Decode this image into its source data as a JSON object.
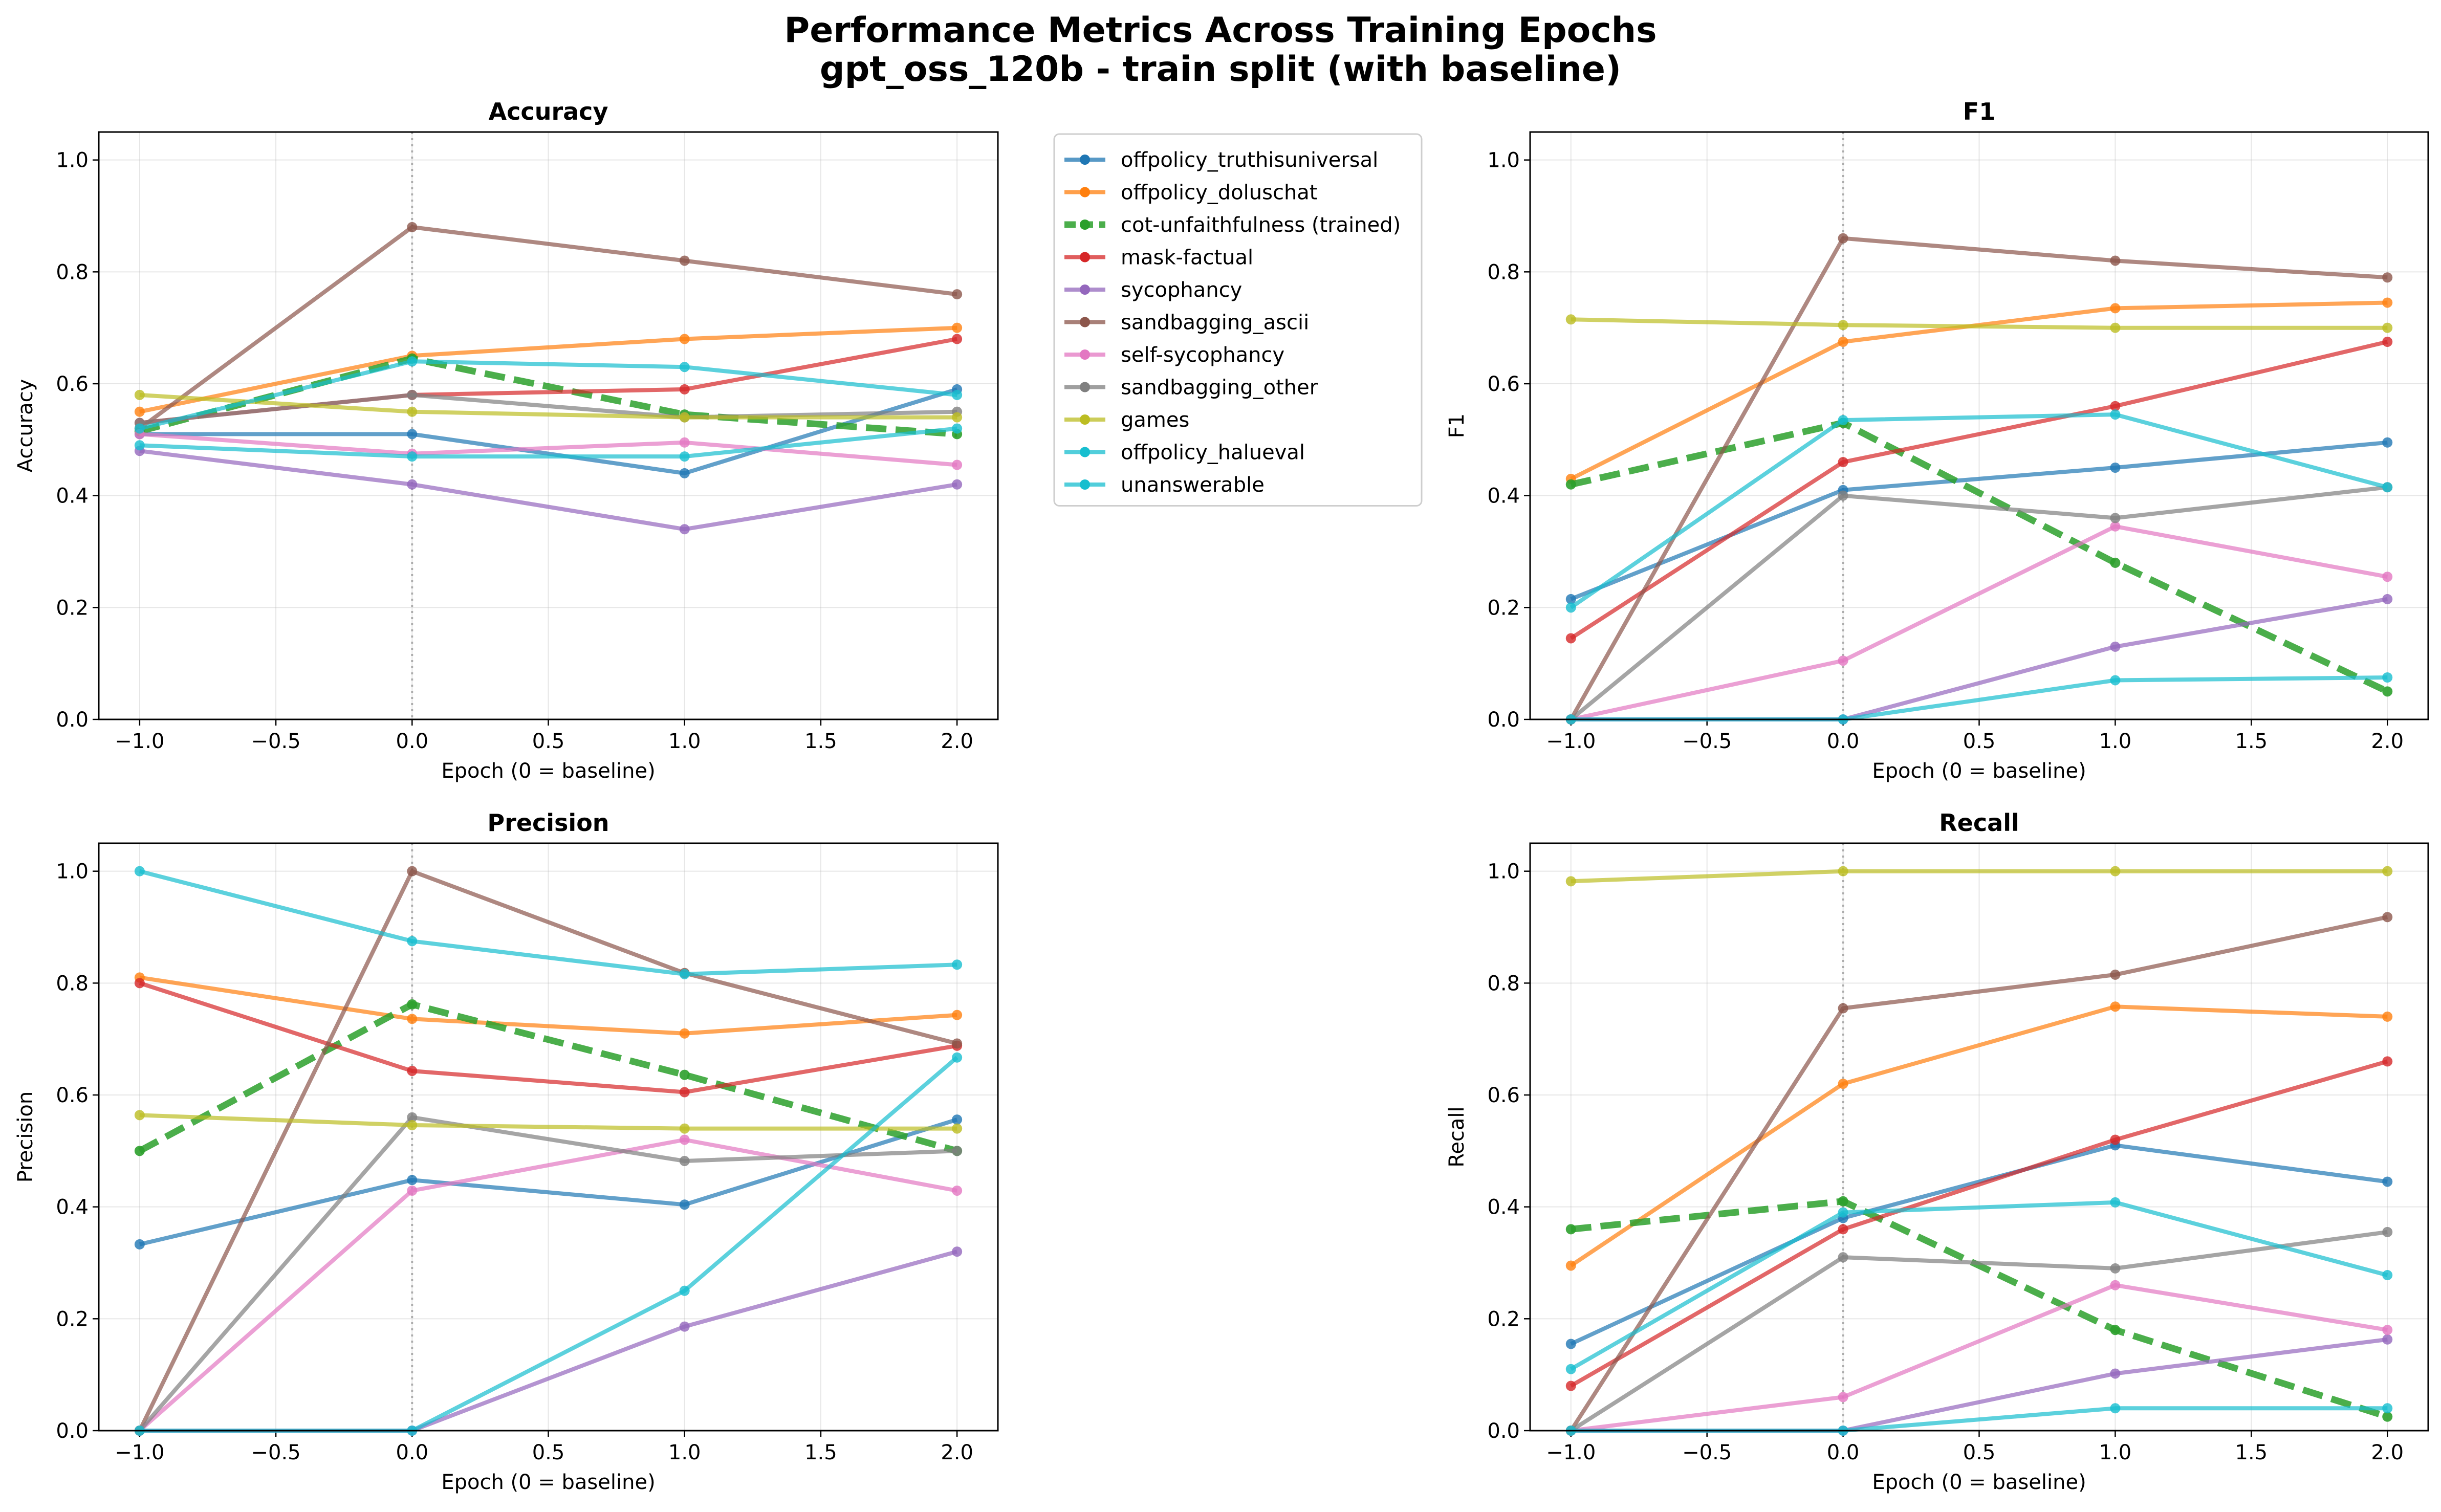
{
  "figure": {
    "title_line1": "Performance Metrics Across Training Epochs",
    "title_line2": "gpt_oss_120b - train split (with baseline)"
  },
  "chart_data": [
    {
      "type": "line",
      "title": "Accuracy",
      "xlabel": "Epoch (0 = baseline)",
      "ylabel": "Accuracy",
      "xlim": [
        -1.15,
        2.15
      ],
      "ylim": [
        0.0,
        1.05
      ],
      "xticks": [
        "−1.0",
        "−0.5",
        "0.0",
        "0.5",
        "1.0",
        "1.5",
        "2.0"
      ],
      "yticks": [
        "0.0",
        "0.2",
        "0.4",
        "0.6",
        "0.8",
        "1.0"
      ],
      "x": [
        -1,
        0,
        1,
        2
      ],
      "baseline_x": 0,
      "grid": true,
      "series": [
        {
          "name": "offpolicy_truthisuniversal",
          "values": [
            0.51,
            0.51,
            0.44,
            0.59
          ]
        },
        {
          "name": "offpolicy_doluschat",
          "values": [
            0.55,
            0.65,
            0.68,
            0.7
          ]
        },
        {
          "name": "cot-unfaithfulness (trained)",
          "values": [
            0.515,
            0.645,
            0.545,
            0.51
          ]
        },
        {
          "name": "mask-factual",
          "values": [
            0.53,
            0.58,
            0.59,
            0.68
          ]
        },
        {
          "name": "sycophancy",
          "values": [
            0.48,
            0.42,
            0.34,
            0.42
          ]
        },
        {
          "name": "sandbagging_ascii",
          "values": [
            0.52,
            0.88,
            0.82,
            0.76
          ]
        },
        {
          "name": "self-sycophancy",
          "values": [
            0.51,
            0.475,
            0.495,
            0.455
          ]
        },
        {
          "name": "sandbagging_other",
          "values": [
            0.53,
            0.58,
            0.54,
            0.55
          ]
        },
        {
          "name": "games",
          "values": [
            0.58,
            0.55,
            0.54,
            0.54
          ]
        },
        {
          "name": "offpolicy_halueval",
          "values": [
            0.52,
            0.64,
            0.63,
            0.58
          ]
        },
        {
          "name": "unanswerable",
          "values": [
            0.49,
            0.47,
            0.47,
            0.52
          ]
        }
      ]
    },
    {
      "type": "line",
      "title": "F1",
      "xlabel": "Epoch (0 = baseline)",
      "ylabel": "F1",
      "xlim": [
        -1.15,
        2.15
      ],
      "ylim": [
        0.0,
        1.05
      ],
      "xticks": [
        "−1.0",
        "−0.5",
        "0.0",
        "0.5",
        "1.0",
        "1.5",
        "2.0"
      ],
      "yticks": [
        "0.0",
        "0.2",
        "0.4",
        "0.6",
        "0.8",
        "1.0"
      ],
      "x": [
        -1,
        0,
        1,
        2
      ],
      "baseline_x": 0,
      "grid": true,
      "series": [
        {
          "name": "offpolicy_truthisuniversal",
          "values": [
            0.215,
            0.41,
            0.45,
            0.495
          ]
        },
        {
          "name": "offpolicy_doluschat",
          "values": [
            0.43,
            0.675,
            0.735,
            0.745
          ]
        },
        {
          "name": "cot-unfaithfulness (trained)",
          "values": [
            0.42,
            0.53,
            0.28,
            0.05
          ]
        },
        {
          "name": "mask-factual",
          "values": [
            0.145,
            0.46,
            0.56,
            0.675
          ]
        },
        {
          "name": "sycophancy",
          "values": [
            0.0,
            0.0,
            0.13,
            0.215
          ]
        },
        {
          "name": "sandbagging_ascii",
          "values": [
            0.0,
            0.86,
            0.82,
            0.79
          ]
        },
        {
          "name": "self-sycophancy",
          "values": [
            0.0,
            0.105,
            0.345,
            0.255
          ]
        },
        {
          "name": "sandbagging_other",
          "values": [
            0.0,
            0.4,
            0.36,
            0.415
          ]
        },
        {
          "name": "games",
          "values": [
            0.715,
            0.705,
            0.7,
            0.7
          ]
        },
        {
          "name": "offpolicy_halueval",
          "values": [
            0.2,
            0.535,
            0.545,
            0.415
          ]
        },
        {
          "name": "unanswerable",
          "values": [
            0.0,
            0.0,
            0.07,
            0.075
          ]
        }
      ]
    },
    {
      "type": "line",
      "title": "Precision",
      "xlabel": "Epoch (0 = baseline)",
      "ylabel": "Precision",
      "xlim": [
        -1.15,
        2.15
      ],
      "ylim": [
        0.0,
        1.05
      ],
      "xticks": [
        "−1.0",
        "−0.5",
        "0.0",
        "0.5",
        "1.0",
        "1.5",
        "2.0"
      ],
      "yticks": [
        "0.0",
        "0.2",
        "0.4",
        "0.6",
        "0.8",
        "1.0"
      ],
      "x": [
        -1,
        0,
        1,
        2
      ],
      "baseline_x": 0,
      "grid": true,
      "series": [
        {
          "name": "offpolicy_truthisuniversal",
          "values": [
            0.333,
            0.448,
            0.404,
            0.556
          ]
        },
        {
          "name": "offpolicy_doluschat",
          "values": [
            0.81,
            0.736,
            0.71,
            0.743
          ]
        },
        {
          "name": "cot-unfaithfulness (trained)",
          "values": [
            0.5,
            0.762,
            0.636,
            0.5
          ]
        },
        {
          "name": "mask-factual",
          "values": [
            0.8,
            0.643,
            0.605,
            0.688
          ]
        },
        {
          "name": "sycophancy",
          "values": [
            0.0,
            0.0,
            0.186,
            0.32
          ]
        },
        {
          "name": "sandbagging_ascii",
          "values": [
            0.0,
            1.0,
            0.818,
            0.692
          ]
        },
        {
          "name": "self-sycophancy",
          "values": [
            0.0,
            0.429,
            0.52,
            0.429
          ]
        },
        {
          "name": "sandbagging_other",
          "values": [
            0.0,
            0.56,
            0.482,
            0.5
          ]
        },
        {
          "name": "games",
          "values": [
            0.564,
            0.546,
            0.54,
            0.54
          ]
        },
        {
          "name": "offpolicy_halueval",
          "values": [
            1.0,
            0.875,
            0.816,
            0.833
          ]
        },
        {
          "name": "unanswerable",
          "values": [
            0.0,
            0.0,
            0.25,
            0.667
          ]
        }
      ]
    },
    {
      "type": "line",
      "title": "Recall",
      "xlabel": "Epoch (0 = baseline)",
      "ylabel": "Recall",
      "xlim": [
        -1.15,
        2.15
      ],
      "ylim": [
        0.0,
        1.05
      ],
      "xticks": [
        "−1.0",
        "−0.5",
        "0.0",
        "0.5",
        "1.0",
        "1.5",
        "2.0"
      ],
      "yticks": [
        "0.0",
        "0.2",
        "0.4",
        "0.6",
        "0.8",
        "1.0"
      ],
      "x": [
        -1,
        0,
        1,
        2
      ],
      "baseline_x": 0,
      "grid": true,
      "series": [
        {
          "name": "offpolicy_truthisuniversal",
          "values": [
            0.155,
            0.38,
            0.51,
            0.445
          ]
        },
        {
          "name": "offpolicy_doluschat",
          "values": [
            0.295,
            0.62,
            0.758,
            0.74
          ]
        },
        {
          "name": "cot-unfaithfulness (trained)",
          "values": [
            0.36,
            0.41,
            0.18,
            0.025
          ]
        },
        {
          "name": "mask-factual",
          "values": [
            0.08,
            0.36,
            0.52,
            0.66
          ]
        },
        {
          "name": "sycophancy",
          "values": [
            0.0,
            0.0,
            0.102,
            0.163
          ]
        },
        {
          "name": "sandbagging_ascii",
          "values": [
            0.0,
            0.755,
            0.815,
            0.918
          ]
        },
        {
          "name": "self-sycophancy",
          "values": [
            0.0,
            0.06,
            0.26,
            0.18
          ]
        },
        {
          "name": "sandbagging_other",
          "values": [
            0.0,
            0.31,
            0.29,
            0.355
          ]
        },
        {
          "name": "games",
          "values": [
            0.982,
            1.0,
            1.0,
            1.0
          ]
        },
        {
          "name": "offpolicy_halueval",
          "values": [
            0.11,
            0.39,
            0.408,
            0.278
          ]
        },
        {
          "name": "unanswerable",
          "values": [
            0.0,
            0.0,
            0.04,
            0.04
          ]
        }
      ]
    }
  ],
  "legend": {
    "placement": "between top-left and top-right panels",
    "items": [
      {
        "name": "offpolicy_truthisuniversal",
        "color": "#1f77b4",
        "style": "solid"
      },
      {
        "name": "offpolicy_doluschat",
        "color": "#ff7f0e",
        "style": "solid"
      },
      {
        "name": "cot-unfaithfulness (trained)",
        "color": "#2ca02c",
        "style": "dashed"
      },
      {
        "name": "mask-factual",
        "color": "#d62728",
        "style": "solid"
      },
      {
        "name": "sycophancy",
        "color": "#9467bd",
        "style": "solid"
      },
      {
        "name": "sandbagging_ascii",
        "color": "#8c564b",
        "style": "solid"
      },
      {
        "name": "self-sycophancy",
        "color": "#e377c2",
        "style": "solid"
      },
      {
        "name": "sandbagging_other",
        "color": "#7f7f7f",
        "style": "solid"
      },
      {
        "name": "games",
        "color": "#bcbd22",
        "style": "solid"
      },
      {
        "name": "offpolicy_halueval",
        "color": "#17becf",
        "style": "solid"
      },
      {
        "name": "unanswerable",
        "color": "#17becf",
        "style": "solid"
      }
    ]
  }
}
